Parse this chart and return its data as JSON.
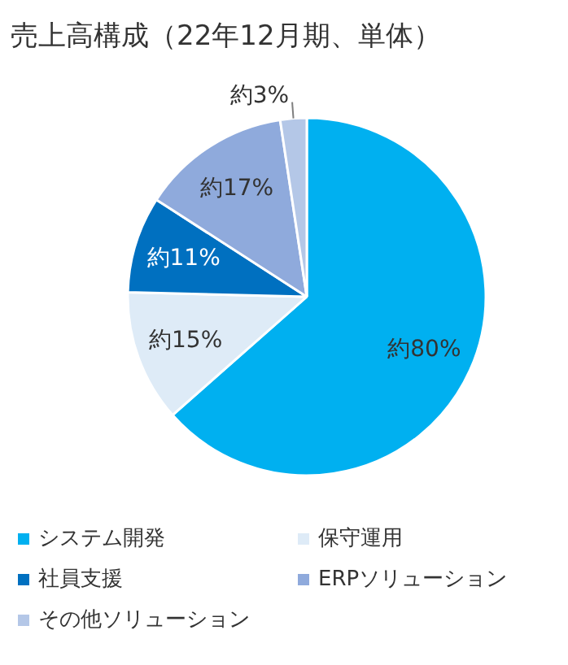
{
  "chart_data": {
    "type": "pie",
    "title": "売上高構成（22年12月期、単体）",
    "categories": [
      "システム開発",
      "保守運用",
      "社員支援",
      "ERPソリューション",
      "その他ソリューション"
    ],
    "values": [
      80,
      15,
      11,
      17,
      3
    ],
    "colors": [
      "#00b0f0",
      "#deebf7",
      "#0070c0",
      "#8faadc",
      "#b4c7e7"
    ],
    "value_labels": [
      "約80%",
      "約15%",
      "約11%",
      "約17%",
      "約3%"
    ],
    "legend": "bottom"
  }
}
